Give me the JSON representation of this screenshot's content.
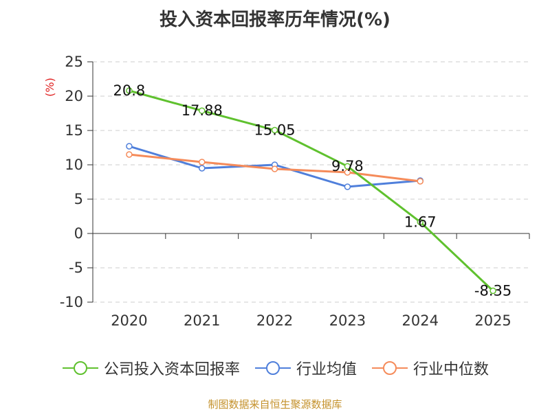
{
  "title": "投入资本回报率历年情况(%)",
  "chart_data": {
    "type": "line",
    "title": "投入资本回报率历年情况(%)",
    "ylabel": "(%)",
    "xlabel": "",
    "categories": [
      "2020",
      "2021",
      "2022",
      "2023",
      "2024",
      "2025"
    ],
    "ylim": [
      -10,
      25
    ],
    "yticks": [
      25,
      20,
      15,
      10,
      5,
      0,
      -5,
      -10
    ],
    "grid": true,
    "legend_position": "bottom",
    "series": [
      {
        "name": "公司投入资本回报率",
        "color": "#5fc12e",
        "values": [
          20.8,
          17.88,
          15.05,
          9.78,
          1.67,
          -8.35
        ],
        "labels": [
          "20.8",
          "17.88",
          "15.05",
          "9.78",
          "1.67",
          "-8.35"
        ]
      },
      {
        "name": "行业均值",
        "color": "#4f7fdb",
        "values": [
          12.7,
          9.5,
          10.0,
          6.8,
          7.7,
          null
        ]
      },
      {
        "name": "行业中位数",
        "color": "#f58b5a",
        "values": [
          11.5,
          10.4,
          9.4,
          8.9,
          7.6,
          null
        ]
      }
    ]
  },
  "footer": "制图数据来自恒生聚源数据库"
}
